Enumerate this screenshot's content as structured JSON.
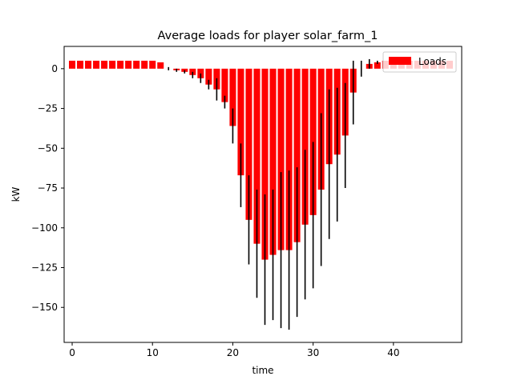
{
  "chart_data": {
    "type": "bar",
    "title": "Average loads for player solar_farm_1",
    "xlabel": "time",
    "ylabel": "kW",
    "xlim": [
      -1,
      48.5
    ],
    "ylim": [
      -172,
      14
    ],
    "xticks": [
      0,
      10,
      20,
      30,
      40
    ],
    "yticks": [
      0,
      -25,
      -50,
      -75,
      -100,
      -125,
      -150
    ],
    "ytick_labels": [
      "0",
      "−25",
      "−50",
      "−75",
      "−100",
      "−125",
      "−150"
    ],
    "grid": false,
    "legend": {
      "position": "top-right",
      "entries": [
        "Loads"
      ]
    },
    "series": [
      {
        "name": "Loads",
        "color": "#ff0000",
        "x": [
          0,
          1,
          2,
          3,
          4,
          5,
          6,
          7,
          8,
          9,
          10,
          11,
          12,
          13,
          14,
          15,
          16,
          17,
          18,
          19,
          20,
          21,
          22,
          23,
          24,
          25,
          26,
          27,
          28,
          29,
          30,
          31,
          32,
          33,
          34,
          35,
          36,
          37,
          38,
          39,
          40,
          41,
          42,
          43,
          44,
          45,
          46,
          47
        ],
        "values": [
          5,
          5,
          5,
          5,
          5,
          5,
          5,
          5,
          5,
          5,
          5,
          4,
          0,
          -1,
          -2,
          -4,
          -6,
          -10,
          -13,
          -21,
          -36,
          -67,
          -95,
          -110,
          -120,
          -117,
          -114,
          -114,
          -109,
          -98,
          -92,
          -76,
          -60,
          -54,
          -42,
          -15,
          0,
          3,
          4,
          5,
          5,
          5,
          5,
          5,
          5,
          5,
          5,
          5
        ],
        "error": [
          0,
          0,
          0,
          0,
          0,
          0,
          0,
          0,
          0,
          0,
          0,
          0,
          1,
          1,
          1,
          2,
          3,
          3,
          7,
          4,
          11,
          20,
          28,
          34,
          41,
          41,
          49,
          50,
          47,
          47,
          46,
          48,
          47,
          42,
          33,
          20,
          5,
          3,
          1,
          0,
          0,
          0,
          0,
          0,
          0,
          0,
          0,
          0
        ]
      }
    ]
  }
}
